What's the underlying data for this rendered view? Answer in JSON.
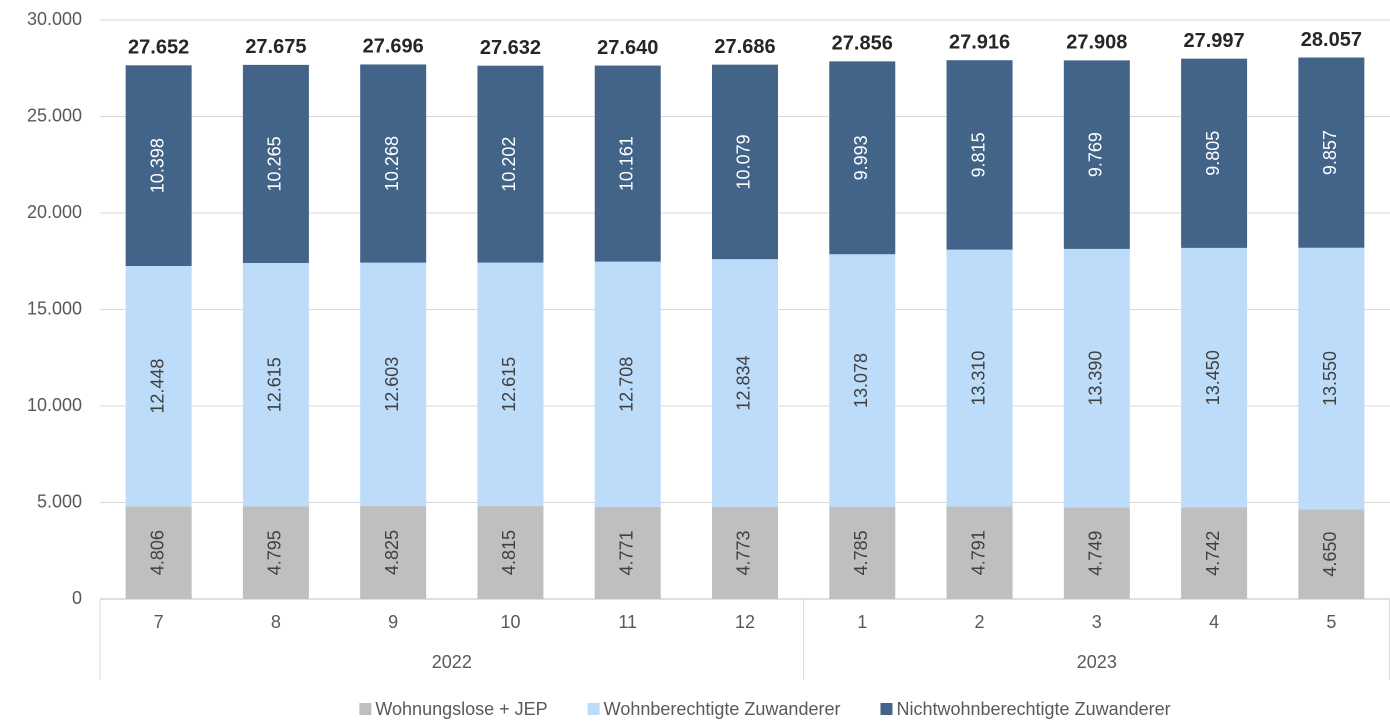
{
  "chart_data": {
    "type": "bar",
    "stacked": true,
    "categories": [
      "7",
      "8",
      "9",
      "10",
      "11",
      "12",
      "1",
      "2",
      "3",
      "4",
      "5"
    ],
    "groups": [
      {
        "name": "2022",
        "count": 6
      },
      {
        "name": "2023",
        "count": 5
      }
    ],
    "series": [
      {
        "name": "Wohnungslose + JEP",
        "color": "#bfbfbf",
        "label_color": "#404040",
        "values": [
          4806,
          4795,
          4825,
          4815,
          4771,
          4773,
          4785,
          4791,
          4749,
          4742,
          4650
        ],
        "value_labels": [
          "4.806",
          "4.795",
          "4.825",
          "4.815",
          "4.771",
          "4.773",
          "4.785",
          "4.791",
          "4.749",
          "4.742",
          "4.650"
        ]
      },
      {
        "name": "Wohnberechtigte Zuwanderer",
        "color": "#bddcfa",
        "label_color": "#404040",
        "values": [
          12448,
          12615,
          12603,
          12615,
          12708,
          12834,
          13078,
          13310,
          13390,
          13450,
          13550
        ],
        "value_labels": [
          "12.448",
          "12.615",
          "12.603",
          "12.615",
          "12.708",
          "12.834",
          "13.078",
          "13.310",
          "13.390",
          "13.450",
          "13.550"
        ]
      },
      {
        "name": "Nichtwohnberechtigte Zuwanderer",
        "color": "#436489",
        "label_color": "#ffffff",
        "values": [
          10398,
          10265,
          10268,
          10202,
          10161,
          10079,
          9993,
          9815,
          9769,
          9805,
          9857
        ],
        "value_labels": [
          "10.398",
          "10.265",
          "10.268",
          "10.202",
          "10.161",
          "10.079",
          "9.993",
          "9.815",
          "9.769",
          "9.805",
          "9.857"
        ]
      }
    ],
    "totals": {
      "values": [
        27652,
        27675,
        27696,
        27632,
        27640,
        27686,
        27856,
        27916,
        27908,
        27997,
        28057
      ],
      "value_labels": [
        "27.652",
        "27.675",
        "27.696",
        "27.632",
        "27.640",
        "27.686",
        "27.856",
        "27.916",
        "27.908",
        "27.997",
        "28.057"
      ]
    },
    "ylim": [
      0,
      30000
    ],
    "yticks": [
      {
        "value": 0,
        "label": "0"
      },
      {
        "value": 5000,
        "label": "5.000"
      },
      {
        "value": 10000,
        "label": "10.000"
      },
      {
        "value": 15000,
        "label": "15.000"
      },
      {
        "value": 20000,
        "label": "20.000"
      },
      {
        "value": 25000,
        "label": "25.000"
      },
      {
        "value": 30000,
        "label": "30.000"
      }
    ],
    "grid": true,
    "legend": "bottom"
  }
}
